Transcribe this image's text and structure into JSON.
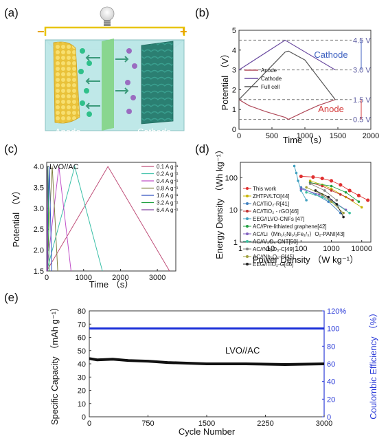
{
  "panels": {
    "a": {
      "label": "(a)",
      "minus": "−",
      "plus": "+",
      "anode_label": "Anode",
      "cathode_label": "Cathode"
    },
    "b": {
      "label": "(b)"
    },
    "c": {
      "label": "(c)"
    },
    "d": {
      "label": "(d)"
    },
    "e": {
      "label": "(e)"
    }
  },
  "colors": {
    "anode": "#f2d04a",
    "separator": "#7fd27f",
    "cathode": "#2e8a7a",
    "electrolyte": "#b9e6e6",
    "wire": "#e8c400"
  },
  "chart_data": [
    {
      "id": "b",
      "type": "line",
      "xlabel": "Time  （s）",
      "ylabel": "Potential  （V）",
      "xlim": [
        0,
        2000
      ],
      "ylim": [
        0,
        5
      ],
      "xticks": [
        0,
        500,
        1000,
        1500,
        2000
      ],
      "yticks": [
        0,
        1,
        2,
        3,
        4,
        5
      ],
      "series": [
        {
          "name": "Anode",
          "color": "#b04a5a",
          "x": [
            0,
            150,
            400,
            700,
            750,
            1000,
            1200,
            1460
          ],
          "y": [
            1.5,
            1.2,
            0.9,
            0.6,
            0.5,
            0.9,
            1.2,
            1.5
          ]
        },
        {
          "name": "Cathode",
          "color": "#6a4aa0",
          "x": [
            0,
            700,
            1460
          ],
          "y": [
            3.0,
            4.5,
            3.0
          ]
        },
        {
          "name": "Full cell",
          "color": "#555555",
          "x": [
            0,
            700,
            750,
            1000,
            1460
          ],
          "y": [
            1.5,
            3.9,
            3.95,
            3.5,
            1.5
          ]
        }
      ],
      "reference_lines": [
        {
          "value": 4.5,
          "label": "4.5 V"
        },
        {
          "value": 3.0,
          "label": "3.0 V"
        },
        {
          "value": 1.5,
          "label": "1.5 V"
        },
        {
          "value": 0.5,
          "label": "0.5 V"
        }
      ],
      "annotations": [
        {
          "text": "Cathode",
          "color": "#3b5fc0"
        },
        {
          "text": "Anode",
          "color": "#d43b3b"
        }
      ]
    },
    {
      "id": "c",
      "type": "line",
      "title": "LVO//AC",
      "xlabel": "Time  （s）",
      "ylabel": "Potential  （V）",
      "xlim": [
        0,
        3500
      ],
      "ylim": [
        1.5,
        4.1
      ],
      "xticks": [
        0,
        1000,
        2000,
        3000
      ],
      "yticks": [
        1.5,
        2.0,
        2.5,
        3.0,
        3.5,
        4.0
      ],
      "series": [
        {
          "name": "0.1 A g⁻¹",
          "color": "#c0507a",
          "peak": 1660,
          "end": 3330
        },
        {
          "name": "0.2 A g⁻¹",
          "color": "#3cc0a8",
          "peak": 760,
          "end": 1510
        },
        {
          "name": "0.4 A g⁻¹",
          "color": "#c050c8",
          "peak": 330,
          "end": 660
        },
        {
          "name": "0.8 A g⁻¹",
          "color": "#808040",
          "peak": 150,
          "end": 300
        },
        {
          "name": "1.6 A g⁻¹",
          "color": "#3050c0",
          "peak": 70,
          "end": 140
        },
        {
          "name": "3.2 A g⁻¹",
          "color": "#20a040",
          "peak": 32,
          "end": 64
        },
        {
          "name": "6.4 A g⁻¹",
          "color": "#8040a0",
          "peak": 15,
          "end": 30
        }
      ]
    },
    {
      "id": "d",
      "type": "scatter",
      "scale": "log-log",
      "xlabel": "Power Density  （W kg⁻¹）",
      "ylabel": "Energy Density  （Wh kg⁻¹）",
      "xlim": [
        1,
        20000
      ],
      "ylim": [
        1,
        300
      ],
      "xticks": [
        1,
        10,
        100,
        1000,
        10000
      ],
      "xticklabels": [
        "1",
        "10",
        "100",
        "1000",
        "10000"
      ],
      "yticks": [
        1,
        10,
        100
      ],
      "yticklabels": [
        "1",
        "10",
        "100"
      ],
      "series": [
        {
          "name": "This work",
          "color": "#e03030",
          "x": [
            100,
            250,
            500,
            1000,
            2000,
            4000,
            8000,
            16000
          ],
          "y": [
            110,
            105,
            95,
            80,
            60,
            40,
            28,
            20
          ]
        },
        {
          "name": "ZHTP//LTO[44]",
          "color": "#c8b400",
          "x": [
            200,
            500,
            1000,
            3000,
            10000
          ],
          "y": [
            80,
            60,
            45,
            25,
            12
          ]
        },
        {
          "name": "AC//TiO₂-R[41]",
          "color": "#4080c0",
          "x": [
            100,
            300,
            800,
            2000
          ],
          "y": [
            50,
            30,
            18,
            8
          ]
        },
        {
          "name": "AC//TiO₂ - rGO[46]",
          "color": "#c03030",
          "x": [
            200,
            500,
            1000,
            2000,
            5000
          ],
          "y": [
            70,
            55,
            40,
            30,
            20
          ]
        },
        {
          "name": "EEG//LVO-CNFs [47]",
          "color": "#40a0c0",
          "x": [
            60,
            70,
            80,
            100,
            150
          ],
          "y": [
            230,
            140,
            80,
            40,
            20
          ]
        },
        {
          "name": "AC//Pre-lithiated graphene[42]",
          "color": "#20a040",
          "x": [
            200,
            1000,
            3000,
            8000
          ],
          "y": [
            70,
            55,
            35,
            18
          ]
        },
        {
          "name": "AC//Li（Mn₁/₃Ni₁/₃Fe₁/₃）O₂-PANI[43]",
          "color": "#8060c0",
          "x": [
            100,
            400,
            1000,
            3000
          ],
          "y": [
            45,
            30,
            20,
            10
          ]
        },
        {
          "name": "AC//V₂O₅-CNT[50]",
          "color": "#40c0a0",
          "x": [
            150,
            500,
            1500,
            4000
          ],
          "y": [
            35,
            25,
            15,
            8
          ]
        },
        {
          "name": "AC//Nb₂O₅-C[49]",
          "color": "#808080",
          "x": [
            200,
            600,
            1500
          ],
          "y": [
            65,
            40,
            20
          ]
        },
        {
          "name": "AC//Nb₂O₅-C[45]",
          "color": "#a0a040",
          "x": [
            150,
            500,
            1000,
            2500
          ],
          "y": [
            50,
            30,
            18,
            8
          ]
        },
        {
          "name": "EEG//TiO₂-G[46]",
          "color": "#202020",
          "x": [
            300,
            800,
            1500,
            2500
          ],
          "y": [
            40,
            25,
            15,
            6
          ]
        }
      ]
    },
    {
      "id": "e",
      "type": "line",
      "title": "LVO//AC",
      "xlabel": "Cycle Number",
      "ylabel": "Specific Capacity  （mAh g⁻¹）",
      "y2label": "Coulombic Efficiency  （%）",
      "xlim": [
        0,
        3000
      ],
      "ylim": [
        0,
        80
      ],
      "y2lim": [
        0,
        120
      ],
      "xticks": [
        0,
        750,
        1500,
        2250,
        3000
      ],
      "yticks": [
        0,
        10,
        20,
        30,
        40,
        50,
        60,
        70,
        80
      ],
      "y2ticks": [
        0,
        20,
        40,
        60,
        80,
        100,
        120
      ],
      "y2ticklabels": [
        "0",
        "20",
        "40",
        "60",
        "80",
        "100",
        "120%"
      ],
      "series": [
        {
          "name": "Specific Capacity",
          "axis": "left",
          "color": "#111111",
          "x": [
            0,
            100,
            300,
            500,
            750,
            1000,
            1500,
            2000,
            2500,
            3000
          ],
          "y": [
            44,
            43,
            43.5,
            42.5,
            42,
            41,
            40,
            40,
            39.5,
            40
          ]
        },
        {
          "name": "Coulombic Efficiency",
          "axis": "right",
          "color": "#1a2fd8",
          "x": [
            0,
            3000
          ],
          "y": [
            100,
            100
          ]
        }
      ]
    }
  ]
}
